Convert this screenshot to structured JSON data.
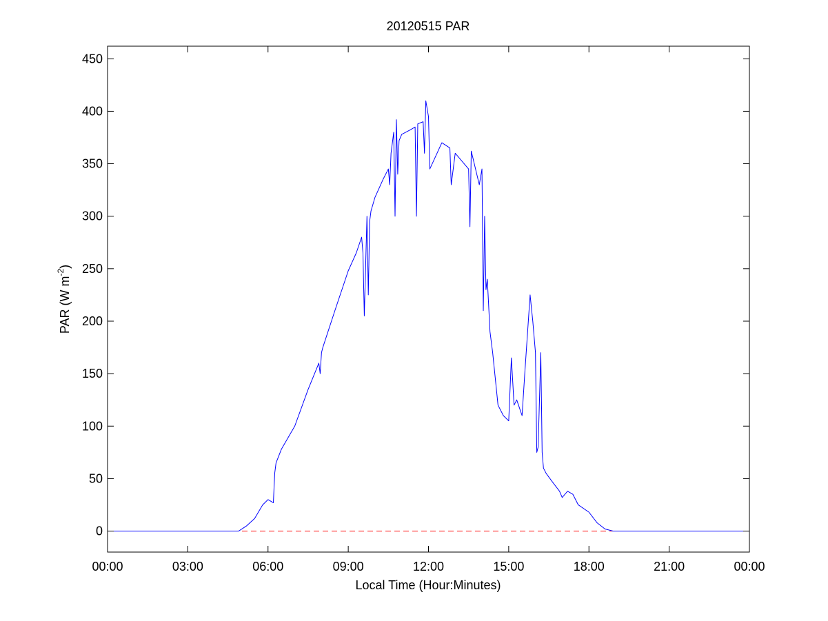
{
  "chart_data": {
    "type": "line",
    "title": "20120515 PAR",
    "xlabel": "Local Time (Hour:Minutes)",
    "ylabel": "PAR (W m",
    "ylabel_sup": "-2",
    "ylabel_end": ")",
    "x": [
      0,
      4.9,
      5.2,
      5.5,
      5.8,
      6.0,
      6.2,
      6.25,
      6.3,
      6.5,
      7.0,
      7.5,
      7.9,
      7.95,
      8.0,
      8.05,
      8.5,
      9.0,
      9.3,
      9.5,
      9.55,
      9.6,
      9.7,
      9.75,
      9.8,
      9.85,
      10.0,
      10.3,
      10.5,
      10.55,
      10.6,
      10.7,
      10.75,
      10.8,
      10.85,
      10.9,
      11.0,
      11.3,
      11.5,
      11.55,
      11.6,
      11.8,
      11.85,
      11.9,
      12.0,
      12.05,
      12.5,
      12.8,
      12.85,
      13.0,
      13.5,
      13.55,
      13.6,
      13.9,
      14.0,
      14.05,
      14.1,
      14.15,
      14.2,
      14.3,
      14.4,
      14.6,
      14.8,
      15.0,
      15.1,
      15.2,
      15.3,
      15.5,
      15.6,
      15.8,
      15.9,
      16.0,
      16.05,
      16.1,
      16.2,
      16.25,
      16.3,
      16.4,
      16.6,
      16.9,
      17.0,
      17.2,
      17.4,
      17.6,
      18.0,
      18.3,
      18.6,
      18.9,
      24
    ],
    "values": [
      0,
      0,
      5,
      12,
      25,
      30,
      27,
      55,
      65,
      78,
      100,
      135,
      160,
      150,
      170,
      175,
      210,
      248,
      265,
      280,
      265,
      205,
      300,
      225,
      295,
      305,
      318,
      335,
      345,
      330,
      360,
      380,
      300,
      392,
      340,
      372,
      378,
      382,
      385,
      300,
      388,
      390,
      360,
      410,
      395,
      345,
      370,
      365,
      330,
      360,
      345,
      290,
      362,
      330,
      345,
      210,
      300,
      230,
      240,
      190,
      170,
      120,
      110,
      105,
      165,
      120,
      125,
      110,
      150,
      225,
      200,
      170,
      75,
      80,
      170,
      75,
      60,
      55,
      48,
      38,
      32,
      38,
      35,
      25,
      18,
      8,
      2,
      0,
      0
    ],
    "color": "#0000ff",
    "hline": {
      "value": 0,
      "color": "#ff0000",
      "style": "dashed"
    },
    "xlim": [
      0,
      24
    ],
    "xticks": [
      {
        "value": 0,
        "label": "00:00"
      },
      {
        "value": 3,
        "label": "03:00"
      },
      {
        "value": 6,
        "label": "06:00"
      },
      {
        "value": 9,
        "label": "09:00"
      },
      {
        "value": 12,
        "label": "12:00"
      },
      {
        "value": 15,
        "label": "15:00"
      },
      {
        "value": 18,
        "label": "18:00"
      },
      {
        "value": 21,
        "label": "21:00"
      },
      {
        "value": 24,
        "label": "00:00"
      }
    ],
    "ylim": [
      -20,
      462
    ],
    "yticks": [
      0,
      50,
      100,
      150,
      200,
      250,
      300,
      350,
      400,
      450
    ],
    "grid": false
  }
}
